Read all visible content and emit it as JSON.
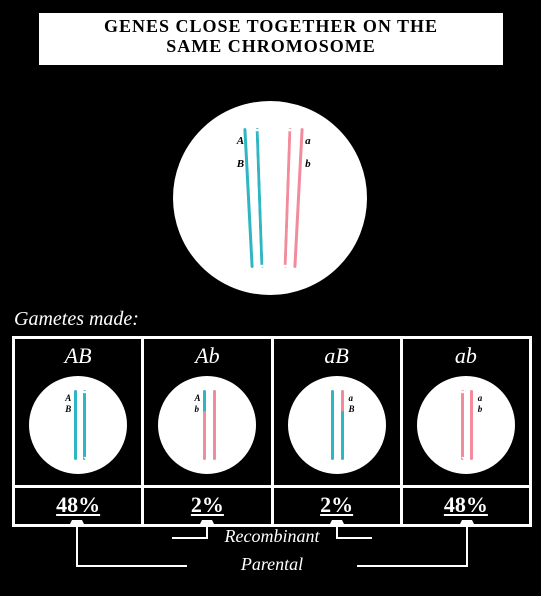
{
  "title": {
    "line1": "GENES CLOSE TOGETHER ON THE",
    "line2": "SAME CHROMOSOME"
  },
  "colors": {
    "teal": "#2fb6c3",
    "pink": "#f28b9b",
    "black": "#000000",
    "white": "#ffffff"
  },
  "parent_cell": {
    "chromosomes": [
      {
        "color_key": "teal",
        "left_pct": 38,
        "curve": -3,
        "alleles": [
          {
            "txt": "A",
            "top_pct": 18,
            "off": -10
          },
          {
            "txt": "B",
            "top_pct": 30,
            "off": -10
          }
        ]
      },
      {
        "color_key": "teal",
        "left_pct": 44,
        "curve": -2,
        "dash": true,
        "alleles": []
      },
      {
        "color_key": "pink",
        "left_pct": 58,
        "curve": 2,
        "dash": true,
        "alleles": []
      },
      {
        "color_key": "pink",
        "left_pct": 64,
        "curve": 3,
        "alleles": [
          {
            "txt": "a",
            "top_pct": 18,
            "off": 8
          },
          {
            "txt": "b",
            "top_pct": 30,
            "off": 8
          }
        ]
      }
    ]
  },
  "gametes_label": "Gametes made:",
  "gametes": [
    {
      "header": "AB",
      "percent": "48%",
      "chromosomes": [
        {
          "color_key": "teal",
          "left_pct": 46,
          "alleles": [
            {
              "txt": "A",
              "top_pct": 18,
              "off": -9
            },
            {
              "txt": "B",
              "top_pct": 30,
              "off": -9
            }
          ]
        },
        {
          "color_key": "teal",
          "left_pct": 55,
          "dash": true,
          "alleles": []
        }
      ]
    },
    {
      "header": "Ab",
      "percent": "2%",
      "chromosomes": [
        {
          "color_key": "teal",
          "left_pct": 46,
          "top_segment": true,
          "alleles": [
            {
              "txt": "A",
              "top_pct": 18,
              "off": -9
            }
          ]
        },
        {
          "color_key": "pink",
          "left_pct": 46,
          "bottom_segment": true,
          "alleles": [
            {
              "txt": "b",
              "top_pct": 30,
              "off": -9
            }
          ]
        },
        {
          "color_key": "pink",
          "left_pct": 56,
          "alleles": []
        }
      ]
    },
    {
      "header": "aB",
      "percent": "2%",
      "chromosomes": [
        {
          "color_key": "teal",
          "left_pct": 44,
          "alleles": []
        },
        {
          "color_key": "pink",
          "left_pct": 54,
          "top_segment": true,
          "alleles": [
            {
              "txt": "a",
              "top_pct": 18,
              "off": 8
            }
          ]
        },
        {
          "color_key": "teal",
          "left_pct": 54,
          "bottom_segment": true,
          "alleles": [
            {
              "txt": "B",
              "top_pct": 30,
              "off": 8
            }
          ]
        }
      ]
    },
    {
      "header": "ab",
      "percent": "48%",
      "chromosomes": [
        {
          "color_key": "pink",
          "left_pct": 45,
          "dash": true,
          "alleles": []
        },
        {
          "color_key": "pink",
          "left_pct": 54,
          "alleles": [
            {
              "txt": "a",
              "top_pct": 18,
              "off": 8
            },
            {
              "txt": "b",
              "top_pct": 30,
              "off": 8
            }
          ]
        }
      ]
    }
  ],
  "annotations": {
    "recombinant": "Recombinant",
    "parental": "Parental"
  }
}
